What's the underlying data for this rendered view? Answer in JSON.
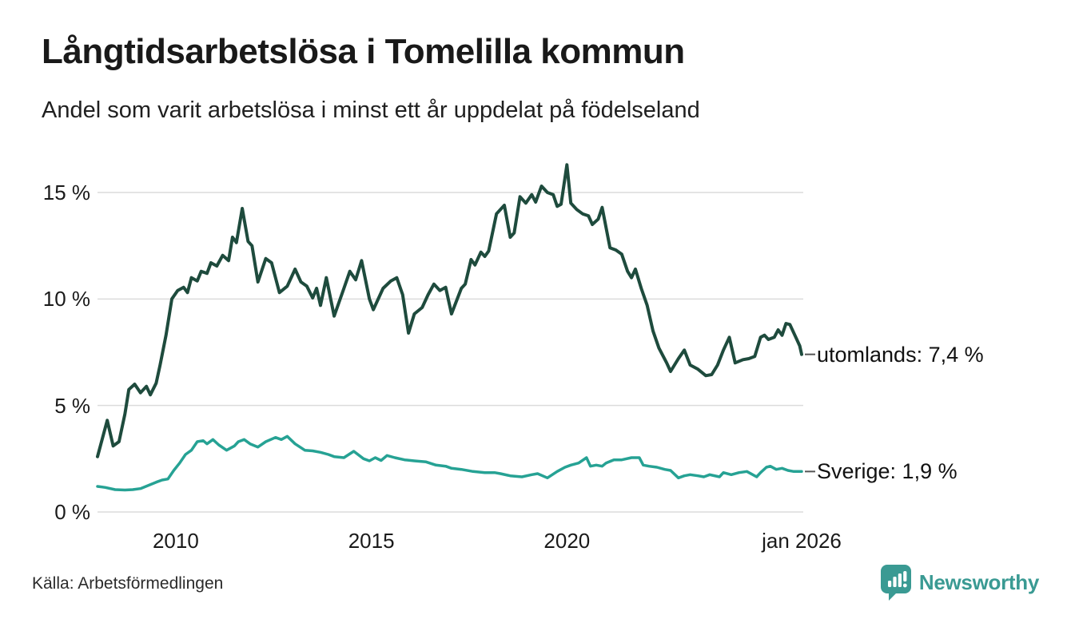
{
  "header": {
    "title": "Långtidsarbetslösa i Tomelilla kommun",
    "subtitle": "Andel som varit arbetslösa i minst ett år uppdelat på födelseland"
  },
  "footer": {
    "source": "Källa: Arbetsförmedlingen",
    "brand": "Newsworthy",
    "brand_color": "#3a9a93"
  },
  "chart_data": {
    "type": "line",
    "title": "Långtidsarbetslösa i Tomelilla kommun",
    "subtitle": "Andel som varit arbetslösa i minst ett år uppdelat på födelseland",
    "grid": true,
    "legend_position": "end-of-line",
    "x_axis": {
      "min": 2008.0,
      "max": 2026.0,
      "ticks": [
        {
          "label": "2010",
          "value": 2010
        },
        {
          "label": "2015",
          "value": 2015
        },
        {
          "label": "2020",
          "value": 2020
        },
        {
          "label": "jan 2026",
          "value": 2026
        }
      ]
    },
    "y_axis": {
      "unit": "%",
      "min": 0,
      "max": 16.5,
      "ticks": [
        {
          "label": "0 %",
          "value": 0
        },
        {
          "label": "5 %",
          "value": 5
        },
        {
          "label": "10 %",
          "value": 10
        },
        {
          "label": "15 %",
          "value": 15
        }
      ]
    },
    "series": [
      {
        "name": "utomlands",
        "color": "#1e4b3d",
        "stroke_width": 4,
        "end_label": "utomlands: 7,4 %",
        "last_value": 7.4,
        "points": [
          [
            2008.0,
            2.6
          ],
          [
            2008.25,
            4.3
          ],
          [
            2008.4,
            3.1
          ],
          [
            2008.55,
            3.3
          ],
          [
            2008.7,
            4.6
          ],
          [
            2008.8,
            5.75
          ],
          [
            2008.95,
            6.0
          ],
          [
            2009.1,
            5.6
          ],
          [
            2009.25,
            5.9
          ],
          [
            2009.35,
            5.5
          ],
          [
            2009.5,
            6.05
          ],
          [
            2009.6,
            6.9
          ],
          [
            2009.75,
            8.3
          ],
          [
            2009.9,
            10.0
          ],
          [
            2010.05,
            10.4
          ],
          [
            2010.2,
            10.55
          ],
          [
            2010.3,
            10.3
          ],
          [
            2010.4,
            11.0
          ],
          [
            2010.55,
            10.85
          ],
          [
            2010.65,
            11.3
          ],
          [
            2010.8,
            11.2
          ],
          [
            2010.9,
            11.7
          ],
          [
            2011.05,
            11.55
          ],
          [
            2011.2,
            12.05
          ],
          [
            2011.35,
            11.8
          ],
          [
            2011.45,
            12.9
          ],
          [
            2011.55,
            12.65
          ],
          [
            2011.7,
            14.25
          ],
          [
            2011.85,
            12.7
          ],
          [
            2011.95,
            12.5
          ],
          [
            2012.1,
            10.8
          ],
          [
            2012.3,
            11.9
          ],
          [
            2012.45,
            11.7
          ],
          [
            2012.65,
            10.3
          ],
          [
            2012.85,
            10.6
          ],
          [
            2013.05,
            11.4
          ],
          [
            2013.2,
            10.8
          ],
          [
            2013.35,
            10.6
          ],
          [
            2013.5,
            10.05
          ],
          [
            2013.6,
            10.5
          ],
          [
            2013.7,
            9.7
          ],
          [
            2013.85,
            11.0
          ],
          [
            2014.05,
            9.2
          ],
          [
            2014.3,
            10.5
          ],
          [
            2014.45,
            11.3
          ],
          [
            2014.6,
            10.9
          ],
          [
            2014.75,
            11.8
          ],
          [
            2014.95,
            10.0
          ],
          [
            2015.05,
            9.5
          ],
          [
            2015.3,
            10.5
          ],
          [
            2015.5,
            10.85
          ],
          [
            2015.65,
            11.0
          ],
          [
            2015.8,
            10.2
          ],
          [
            2015.95,
            8.4
          ],
          [
            2016.1,
            9.3
          ],
          [
            2016.3,
            9.6
          ],
          [
            2016.45,
            10.2
          ],
          [
            2016.6,
            10.7
          ],
          [
            2016.75,
            10.4
          ],
          [
            2016.9,
            10.55
          ],
          [
            2017.05,
            9.3
          ],
          [
            2017.3,
            10.5
          ],
          [
            2017.4,
            10.7
          ],
          [
            2017.55,
            11.85
          ],
          [
            2017.65,
            11.6
          ],
          [
            2017.8,
            12.2
          ],
          [
            2017.9,
            12.0
          ],
          [
            2018.0,
            12.25
          ],
          [
            2018.2,
            14.0
          ],
          [
            2018.4,
            14.4
          ],
          [
            2018.55,
            12.9
          ],
          [
            2018.65,
            13.1
          ],
          [
            2018.8,
            14.8
          ],
          [
            2018.95,
            14.5
          ],
          [
            2019.1,
            14.9
          ],
          [
            2019.2,
            14.55
          ],
          [
            2019.35,
            15.3
          ],
          [
            2019.5,
            15.0
          ],
          [
            2019.65,
            14.9
          ],
          [
            2019.75,
            14.35
          ],
          [
            2019.85,
            14.45
          ],
          [
            2020.0,
            16.3
          ],
          [
            2020.1,
            14.5
          ],
          [
            2020.25,
            14.2
          ],
          [
            2020.4,
            14.0
          ],
          [
            2020.55,
            13.9
          ],
          [
            2020.65,
            13.5
          ],
          [
            2020.8,
            13.75
          ],
          [
            2020.9,
            14.3
          ],
          [
            2021.1,
            12.4
          ],
          [
            2021.25,
            12.3
          ],
          [
            2021.4,
            12.1
          ],
          [
            2021.55,
            11.3
          ],
          [
            2021.65,
            11.0
          ],
          [
            2021.75,
            11.4
          ],
          [
            2021.9,
            10.5
          ],
          [
            2022.05,
            9.7
          ],
          [
            2022.2,
            8.5
          ],
          [
            2022.35,
            7.7
          ],
          [
            2022.55,
            7.0
          ],
          [
            2022.65,
            6.6
          ],
          [
            2022.85,
            7.2
          ],
          [
            2023.0,
            7.6
          ],
          [
            2023.15,
            6.9
          ],
          [
            2023.35,
            6.7
          ],
          [
            2023.55,
            6.4
          ],
          [
            2023.7,
            6.45
          ],
          [
            2023.85,
            6.9
          ],
          [
            2024.0,
            7.6
          ],
          [
            2024.15,
            8.2
          ],
          [
            2024.3,
            7.0
          ],
          [
            2024.5,
            7.15
          ],
          [
            2024.65,
            7.2
          ],
          [
            2024.8,
            7.3
          ],
          [
            2024.95,
            8.2
          ],
          [
            2025.05,
            8.3
          ],
          [
            2025.15,
            8.1
          ],
          [
            2025.3,
            8.2
          ],
          [
            2025.4,
            8.55
          ],
          [
            2025.5,
            8.3
          ],
          [
            2025.6,
            8.85
          ],
          [
            2025.7,
            8.8
          ],
          [
            2025.85,
            8.2
          ],
          [
            2025.95,
            7.8
          ],
          [
            2026.0,
            7.4
          ]
        ]
      },
      {
        "name": "Sverige",
        "color": "#26a294",
        "stroke_width": 3.5,
        "end_label": "Sverige: 1,9 %",
        "last_value": 1.9,
        "points": [
          [
            2008.0,
            1.2
          ],
          [
            2008.2,
            1.15
          ],
          [
            2008.45,
            1.05
          ],
          [
            2008.7,
            1.03
          ],
          [
            2008.9,
            1.05
          ],
          [
            2009.1,
            1.1
          ],
          [
            2009.3,
            1.25
          ],
          [
            2009.5,
            1.4
          ],
          [
            2009.65,
            1.5
          ],
          [
            2009.8,
            1.55
          ],
          [
            2009.95,
            1.95
          ],
          [
            2010.1,
            2.3
          ],
          [
            2010.25,
            2.7
          ],
          [
            2010.4,
            2.9
          ],
          [
            2010.55,
            3.3
          ],
          [
            2010.7,
            3.35
          ],
          [
            2010.8,
            3.2
          ],
          [
            2010.95,
            3.4
          ],
          [
            2011.1,
            3.15
          ],
          [
            2011.3,
            2.9
          ],
          [
            2011.5,
            3.1
          ],
          [
            2011.6,
            3.3
          ],
          [
            2011.75,
            3.4
          ],
          [
            2011.9,
            3.2
          ],
          [
            2012.1,
            3.05
          ],
          [
            2012.3,
            3.3
          ],
          [
            2012.55,
            3.5
          ],
          [
            2012.7,
            3.4
          ],
          [
            2012.85,
            3.55
          ],
          [
            2013.05,
            3.2
          ],
          [
            2013.3,
            2.9
          ],
          [
            2013.5,
            2.87
          ],
          [
            2013.7,
            2.8
          ],
          [
            2013.9,
            2.7
          ],
          [
            2014.05,
            2.6
          ],
          [
            2014.3,
            2.55
          ],
          [
            2014.55,
            2.85
          ],
          [
            2014.8,
            2.5
          ],
          [
            2014.95,
            2.4
          ],
          [
            2015.1,
            2.55
          ],
          [
            2015.25,
            2.42
          ],
          [
            2015.4,
            2.65
          ],
          [
            2015.6,
            2.55
          ],
          [
            2015.85,
            2.45
          ],
          [
            2016.1,
            2.4
          ],
          [
            2016.4,
            2.35
          ],
          [
            2016.65,
            2.2
          ],
          [
            2016.9,
            2.15
          ],
          [
            2017.05,
            2.05
          ],
          [
            2017.3,
            2.0
          ],
          [
            2017.6,
            1.9
          ],
          [
            2017.9,
            1.85
          ],
          [
            2018.15,
            1.85
          ],
          [
            2018.3,
            1.8
          ],
          [
            2018.55,
            1.7
          ],
          [
            2018.85,
            1.65
          ],
          [
            2019.1,
            1.75
          ],
          [
            2019.25,
            1.8
          ],
          [
            2019.5,
            1.6
          ],
          [
            2019.75,
            1.9
          ],
          [
            2019.95,
            2.1
          ],
          [
            2020.1,
            2.2
          ],
          [
            2020.3,
            2.3
          ],
          [
            2020.5,
            2.55
          ],
          [
            2020.6,
            2.15
          ],
          [
            2020.75,
            2.2
          ],
          [
            2020.9,
            2.15
          ],
          [
            2021.0,
            2.3
          ],
          [
            2021.2,
            2.45
          ],
          [
            2021.4,
            2.45
          ],
          [
            2021.65,
            2.55
          ],
          [
            2021.85,
            2.55
          ],
          [
            2021.95,
            2.2
          ],
          [
            2022.1,
            2.15
          ],
          [
            2022.3,
            2.1
          ],
          [
            2022.5,
            2.0
          ],
          [
            2022.65,
            1.95
          ],
          [
            2022.85,
            1.6
          ],
          [
            2023.0,
            1.7
          ],
          [
            2023.15,
            1.75
          ],
          [
            2023.35,
            1.7
          ],
          [
            2023.5,
            1.65
          ],
          [
            2023.65,
            1.75
          ],
          [
            2023.9,
            1.65
          ],
          [
            2024.0,
            1.85
          ],
          [
            2024.2,
            1.75
          ],
          [
            2024.4,
            1.85
          ],
          [
            2024.6,
            1.9
          ],
          [
            2024.85,
            1.65
          ],
          [
            2024.95,
            1.85
          ],
          [
            2025.1,
            2.1
          ],
          [
            2025.2,
            2.15
          ],
          [
            2025.35,
            2.0
          ],
          [
            2025.5,
            2.05
          ],
          [
            2025.65,
            1.95
          ],
          [
            2025.8,
            1.9
          ],
          [
            2026.0,
            1.9
          ]
        ]
      }
    ]
  }
}
